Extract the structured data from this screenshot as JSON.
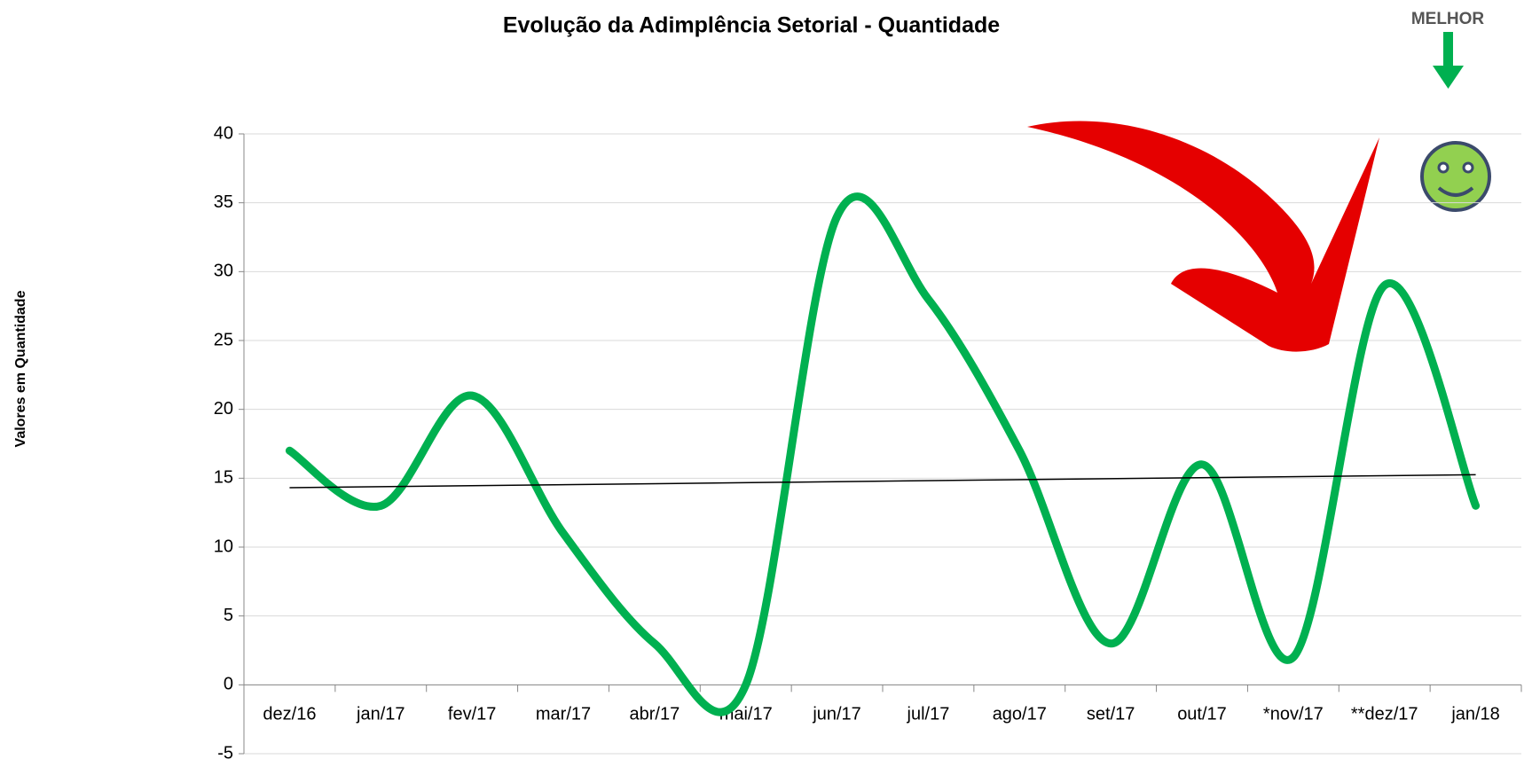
{
  "chart_data": {
    "type": "line",
    "title": "Evolução da Adimplência Setorial - Quantidade",
    "y_label": "Valores em Quantidade",
    "annotation": "MELHOR",
    "categories": [
      "dez/16",
      "jan/17",
      "fev/17",
      "mar/17",
      "abr/17",
      "mai/17",
      "jun/17",
      "jul/17",
      "ago/17",
      "set/17",
      "out/17",
      "*nov/17",
      "**dez/17",
      "jan/18"
    ],
    "series": [
      {
        "color": "#00b050",
        "values": [
          17,
          13,
          21,
          11,
          3,
          0,
          34,
          28,
          17,
          3,
          16,
          2,
          29,
          13
        ]
      }
    ],
    "trendline": true,
    "ylim": [
      -5,
      40
    ],
    "yticks": [
      -5,
      0,
      5,
      10,
      15,
      20,
      25,
      30,
      35,
      40
    ],
    "grid": true
  }
}
